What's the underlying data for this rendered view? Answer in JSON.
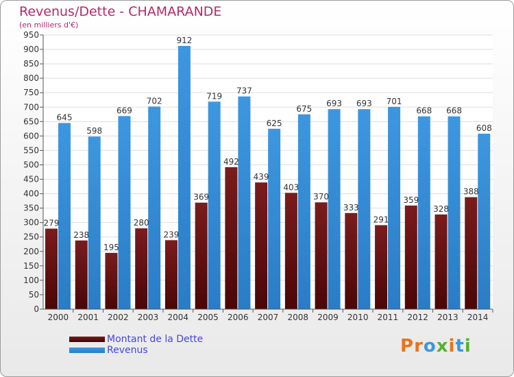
{
  "header": {
    "title": "Revenus/Dette - CHAMARANDE",
    "subtitle": "(en milliers d'€)"
  },
  "chart_data": {
    "type": "bar",
    "categories": [
      "2000",
      "2001",
      "2002",
      "2003",
      "2004",
      "2005",
      "2006",
      "2007",
      "2008",
      "2009",
      "2010",
      "2011",
      "2012",
      "2013",
      "2014"
    ],
    "series": [
      {
        "name": "Montant de la Dette",
        "color": "#7a1c1c",
        "values": [
          279,
          238,
          195,
          280,
          239,
          369,
          492,
          439,
          403,
          370,
          333,
          291,
          359,
          328,
          388
        ]
      },
      {
        "name": "Revenus",
        "color": "#3d97e0",
        "values": [
          645,
          598,
          669,
          702,
          912,
          719,
          737,
          625,
          675,
          693,
          693,
          701,
          668,
          668,
          608
        ]
      }
    ],
    "ylim": [
      0,
      950
    ],
    "yticks": [
      0,
      50,
      100,
      150,
      200,
      250,
      300,
      350,
      400,
      450,
      500,
      550,
      600,
      650,
      700,
      750,
      800,
      850,
      900,
      950
    ],
    "grid": true,
    "legend": "bottom-left"
  },
  "legend": {
    "items": [
      {
        "label": "Montant de la Dette",
        "color": "#7a1c1c"
      },
      {
        "label": "Revenus",
        "color": "#3d97e0"
      }
    ]
  },
  "brand": {
    "letters": [
      "P",
      "r",
      "o",
      "x",
      "i",
      "t",
      "i"
    ],
    "colors": [
      "#e8731c",
      "#e8731c",
      "#3d97e0",
      "#58b031",
      "#e8731c",
      "#3d97e0",
      "#58b031"
    ]
  }
}
